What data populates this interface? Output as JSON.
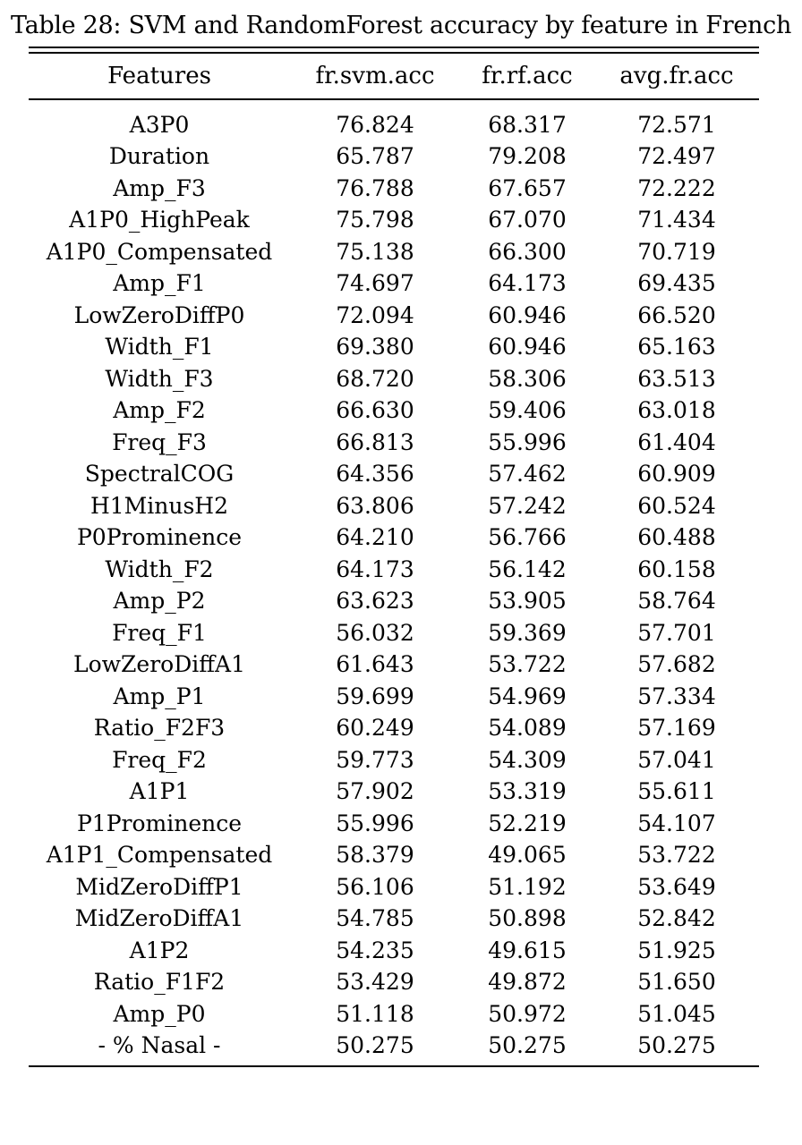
{
  "caption": "Table 28: SVM and RandomForest accuracy by feature in French",
  "table": {
    "headers": [
      "Features",
      "fr.svm.acc",
      "fr.rf.acc",
      "avg.fr.acc"
    ],
    "rows": [
      [
        "A3P0",
        "76.824",
        "68.317",
        "72.571"
      ],
      [
        "Duration",
        "65.787",
        "79.208",
        "72.497"
      ],
      [
        "Amp_F3",
        "76.788",
        "67.657",
        "72.222"
      ],
      [
        "A1P0_HighPeak",
        "75.798",
        "67.070",
        "71.434"
      ],
      [
        "A1P0_Compensated",
        "75.138",
        "66.300",
        "70.719"
      ],
      [
        "Amp_F1",
        "74.697",
        "64.173",
        "69.435"
      ],
      [
        "LowZeroDiffP0",
        "72.094",
        "60.946",
        "66.520"
      ],
      [
        "Width_F1",
        "69.380",
        "60.946",
        "65.163"
      ],
      [
        "Width_F3",
        "68.720",
        "58.306",
        "63.513"
      ],
      [
        "Amp_F2",
        "66.630",
        "59.406",
        "63.018"
      ],
      [
        "Freq_F3",
        "66.813",
        "55.996",
        "61.404"
      ],
      [
        "SpectralCOG",
        "64.356",
        "57.462",
        "60.909"
      ],
      [
        "H1MinusH2",
        "63.806",
        "57.242",
        "60.524"
      ],
      [
        "P0Prominence",
        "64.210",
        "56.766",
        "60.488"
      ],
      [
        "Width_F2",
        "64.173",
        "56.142",
        "60.158"
      ],
      [
        "Amp_P2",
        "63.623",
        "53.905",
        "58.764"
      ],
      [
        "Freq_F1",
        "56.032",
        "59.369",
        "57.701"
      ],
      [
        "LowZeroDiffA1",
        "61.643",
        "53.722",
        "57.682"
      ],
      [
        "Amp_P1",
        "59.699",
        "54.969",
        "57.334"
      ],
      [
        "Ratio_F2F3",
        "60.249",
        "54.089",
        "57.169"
      ],
      [
        "Freq_F2",
        "59.773",
        "54.309",
        "57.041"
      ],
      [
        "A1P1",
        "57.902",
        "53.319",
        "55.611"
      ],
      [
        "P1Prominence",
        "55.996",
        "52.219",
        "54.107"
      ],
      [
        "A1P1_Compensated",
        "58.379",
        "49.065",
        "53.722"
      ],
      [
        "MidZeroDiffP1",
        "56.106",
        "51.192",
        "53.649"
      ],
      [
        "MidZeroDiffA1",
        "54.785",
        "50.898",
        "52.842"
      ],
      [
        "A1P2",
        "54.235",
        "49.615",
        "51.925"
      ],
      [
        "Ratio_F1F2",
        "53.429",
        "49.872",
        "51.650"
      ],
      [
        "Amp_P0",
        "51.118",
        "50.972",
        "51.045"
      ],
      [
        "- % Nasal -",
        "50.275",
        "50.275",
        "50.275"
      ]
    ]
  }
}
